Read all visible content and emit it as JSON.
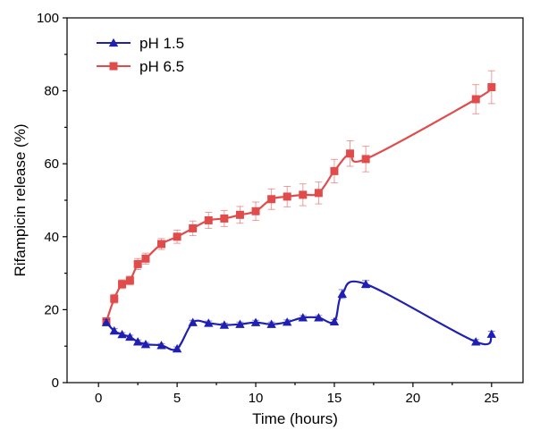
{
  "chart_data": {
    "type": "line",
    "title": "",
    "xlabel": "Time (hours)",
    "ylabel": "Rifampicin release (%)",
    "xlim": [
      -2,
      27
    ],
    "ylim": [
      0,
      100
    ],
    "xticks": [
      0,
      5,
      10,
      15,
      20,
      25
    ],
    "yticks": [
      0,
      20,
      40,
      60,
      80,
      100
    ],
    "grid": false,
    "legend_position": "top-left",
    "series": [
      {
        "name": "pH 1.5",
        "color": "#1f1fb4",
        "marker": "triangle",
        "x": [
          0.5,
          1,
          1.5,
          2,
          2.5,
          3,
          4,
          5,
          6,
          7,
          8,
          9,
          10,
          11,
          12,
          13,
          14,
          15,
          15.5,
          17,
          24,
          25
        ],
        "y": [
          16.5,
          14.2,
          13.2,
          12.5,
          11.2,
          10.5,
          10.2,
          9.3,
          16.5,
          16.3,
          15.8,
          16.0,
          16.5,
          16.0,
          16.6,
          17.8,
          17.8,
          16.7,
          24.3,
          27.0,
          11.2,
          13.3
        ],
        "err": [
          0.8,
          0.6,
          0.5,
          0.5,
          0.5,
          0.5,
          0.5,
          0.5,
          0.6,
          0.6,
          0.5,
          0.6,
          0.6,
          0.6,
          0.6,
          0.6,
          0.6,
          0.6,
          1.2,
          1.0,
          0.6,
          0.8
        ]
      },
      {
        "name": "pH 6.5",
        "color": "#e04c4c",
        "marker": "square",
        "x": [
          0.5,
          1,
          1.5,
          2,
          2.5,
          3,
          4,
          5,
          6,
          7,
          8,
          9,
          10,
          11,
          12,
          13,
          14,
          15,
          16,
          17,
          24,
          25
        ],
        "y": [
          16.8,
          23.0,
          27.0,
          28.0,
          32.5,
          34.0,
          38.0,
          40.0,
          42.3,
          44.5,
          45.0,
          46.0,
          47.0,
          50.3,
          51.0,
          51.5,
          52.0,
          58.0,
          62.8,
          61.3,
          77.7,
          81.0
        ],
        "err": [
          1.0,
          1.2,
          1.2,
          1.2,
          1.5,
          1.5,
          1.5,
          1.8,
          2.0,
          2.2,
          2.2,
          2.3,
          2.5,
          2.8,
          2.8,
          3.0,
          3.0,
          3.2,
          3.5,
          3.5,
          4.0,
          4.5
        ]
      }
    ]
  }
}
